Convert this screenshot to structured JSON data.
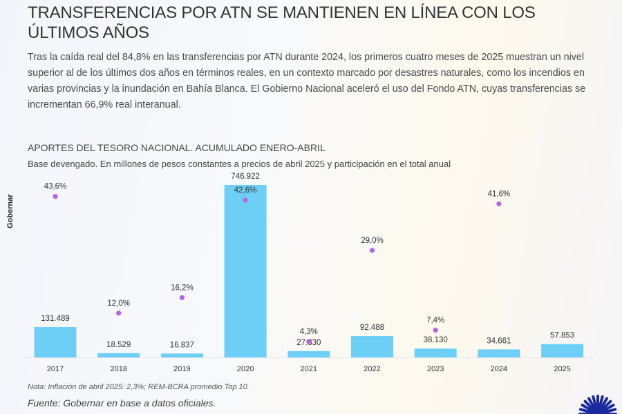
{
  "header": {
    "title": "TRANSFERENCIAS POR ATN SE MANTIENEN EN LÍNEA CON LOS ÚLTIMOS AÑOS",
    "lead": "Tras la caída real del 84,8% en las transferencias por ATN durante 2024, los primeros cuatro meses de 2025 muestran un nivel superior al de los últimos dos años en términos reales, en un contexto marcado por desastres naturales, como los incendios en varias provincias y la inundación en Bahía Blanca. El Gobierno Nacional aceleró el uso del Fondo ATN, cuyas transferencias se incrementan 66,9% real interanual."
  },
  "watermark": "Gobernar",
  "footer": {
    "note": "Nota: Inflación de abril 2025: 2,3%; REM-BCRA promedio Top 10.",
    "source": "Fuente: Gobernar en base a datos oficiales."
  },
  "logo": "sunburst-logo-icon",
  "colors": {
    "bar": "#6dcff6",
    "dot": "#b565e0"
  },
  "chart_data": {
    "type": "bar",
    "title": "APORTES DEL TESORO NACIONAL. ACUMULADO ENERO-ABRIL",
    "subtitle": "Base devengado. En millones de pesos constantes a precios de abril 2025 y participación en el total anual",
    "xlabel": "",
    "ylabel": "",
    "categories": [
      "2017",
      "2018",
      "2019",
      "2020",
      "2021",
      "2022",
      "2023",
      "2024",
      "2025"
    ],
    "series": [
      {
        "name": "Millones de pesos constantes",
        "type": "bar",
        "values": [
          131489,
          18529,
          16837,
          746922,
          27330,
          92488,
          38130,
          34661,
          57853
        ],
        "labels": [
          "131.489",
          "18.529",
          "16.837",
          "746.922",
          "27.330",
          "92.488",
          "38.130",
          "34.661",
          "57.853"
        ]
      },
      {
        "name": "Participación en el total anual",
        "type": "scatter",
        "unit": "%",
        "values": [
          43.6,
          12.0,
          16.2,
          42.6,
          4.3,
          29.0,
          7.4,
          41.6,
          null
        ],
        "labels": [
          "43,6%",
          "12,0%",
          "16,2%",
          "42,6%",
          "4,3%",
          "29,0%",
          "7,4%",
          "41,6%",
          ""
        ]
      }
    ],
    "ylim": [
      0,
      746922
    ],
    "ylim_secondary": [
      0,
      100
    ],
    "grid": false,
    "legend": "none"
  }
}
